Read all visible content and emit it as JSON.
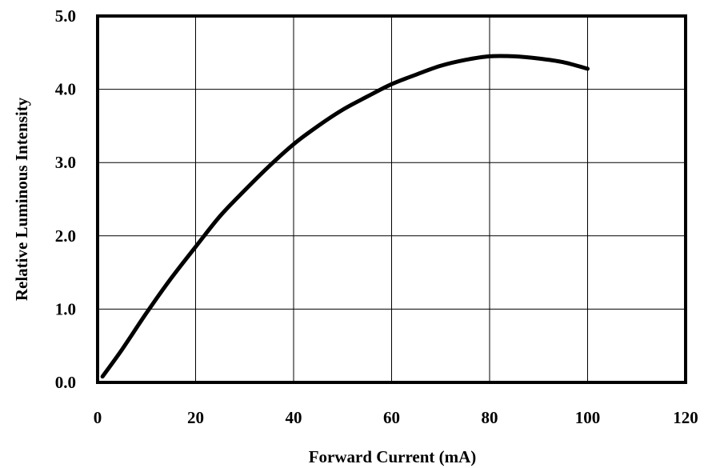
{
  "chart_data": {
    "type": "line",
    "title": "",
    "xlabel": "Forward Current (mA)",
    "ylabel": "Relative Luminous Intensity",
    "xlim": [
      0,
      120
    ],
    "ylim": [
      0,
      5
    ],
    "x_ticks": [
      0,
      20,
      40,
      60,
      80,
      100,
      120
    ],
    "x_tick_labels": [
      "0",
      "20",
      "40",
      "60",
      "80",
      "100",
      "120"
    ],
    "y_ticks": [
      0,
      1,
      2,
      3,
      4,
      5
    ],
    "y_tick_labels": [
      "0.0",
      "1.0",
      "2.0",
      "3.0",
      "4.0",
      "5.0"
    ],
    "grid": true,
    "legend": "none",
    "series": [
      {
        "color": "#000000",
        "x": [
          1,
          5,
          10,
          15,
          20,
          25,
          30,
          35,
          40,
          45,
          50,
          55,
          60,
          65,
          70,
          75,
          80,
          85,
          90,
          95,
          100
        ],
        "y": [
          0.08,
          0.45,
          0.95,
          1.42,
          1.85,
          2.27,
          2.62,
          2.95,
          3.25,
          3.5,
          3.72,
          3.9,
          4.07,
          4.2,
          4.32,
          4.4,
          4.45,
          4.45,
          4.42,
          4.37,
          4.28
        ]
      }
    ]
  }
}
